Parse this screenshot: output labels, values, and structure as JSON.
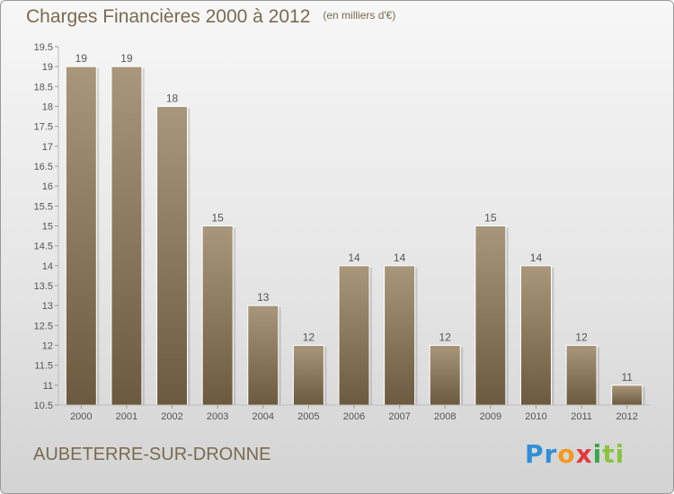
{
  "header": {
    "title": "Charges Financières 2000 à 2012",
    "unit": "(en milliers d'€)"
  },
  "footer": {
    "commune": "AUBETERRE-SUR-DRONNE",
    "logo": {
      "text": "Proxiti",
      "parts": [
        "Pr",
        "o",
        "x",
        "i",
        "ti"
      ]
    }
  },
  "colors": {
    "bar": "#8c7c5e",
    "title_text": "#7a6a4f"
  },
  "chart_data": {
    "type": "bar",
    "title": "Charges Financières 2000 à 2012",
    "subtitle": "(en milliers d'€)",
    "xlabel": "",
    "ylabel": "",
    "categories": [
      "2000",
      "2001",
      "2002",
      "2003",
      "2004",
      "2005",
      "2006",
      "2007",
      "2008",
      "2009",
      "2010",
      "2011",
      "2012"
    ],
    "values": [
      19,
      19,
      18,
      15,
      13,
      12,
      14,
      14,
      12,
      15,
      14,
      12,
      11
    ],
    "labels": [
      "19",
      "19",
      "18",
      "15",
      "13",
      "12",
      "14",
      "14",
      "12",
      "15",
      "14",
      "12",
      "11"
    ],
    "ylim": [
      10.5,
      19.5
    ],
    "yticks": [
      "10.5",
      "11",
      "11.5",
      "12",
      "12.5",
      "13",
      "13.5",
      "14",
      "14.5",
      "15",
      "15.5",
      "16",
      "16.5",
      "17",
      "17.5",
      "18",
      "18.5",
      "19",
      "19.5"
    ],
    "grid": false,
    "legend": "none"
  }
}
